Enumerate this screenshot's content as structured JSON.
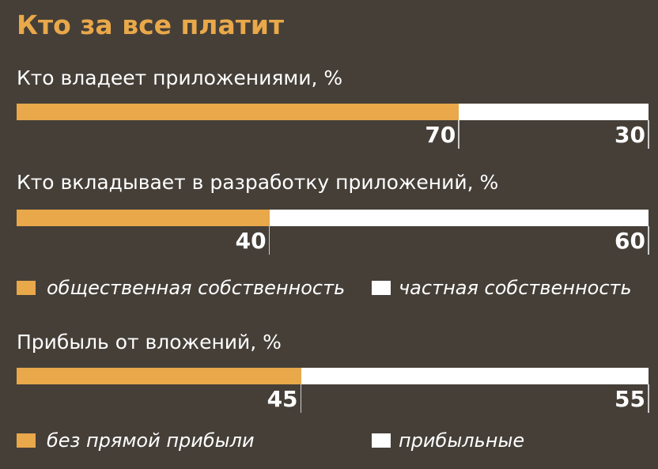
{
  "colors": {
    "background": "#453f38",
    "public": "#e9a84a",
    "private": "#ffffff"
  },
  "chart_data": [
    {
      "type": "bar",
      "stacked": true,
      "orientation": "horizontal",
      "title": "Кто владеет приложениями, %",
      "categories": [
        "public",
        "private"
      ],
      "values": [
        70,
        30
      ]
    },
    {
      "type": "bar",
      "stacked": true,
      "orientation": "horizontal",
      "title": "Кто вкладывает в разработку приложений, %",
      "categories": [
        "public",
        "private"
      ],
      "values": [
        40,
        60
      ],
      "legend": [
        "общественная собственность",
        "частная собственность"
      ]
    },
    {
      "type": "bar",
      "stacked": true,
      "orientation": "horizontal",
      "title": "Прибыль от вложений, %",
      "categories": [
        "nonprofit",
        "profit"
      ],
      "values": [
        45,
        55
      ],
      "legend": [
        "без прямой прибыли",
        "прибыльные"
      ]
    }
  ],
  "header": {
    "title": "Кто за все платит"
  }
}
